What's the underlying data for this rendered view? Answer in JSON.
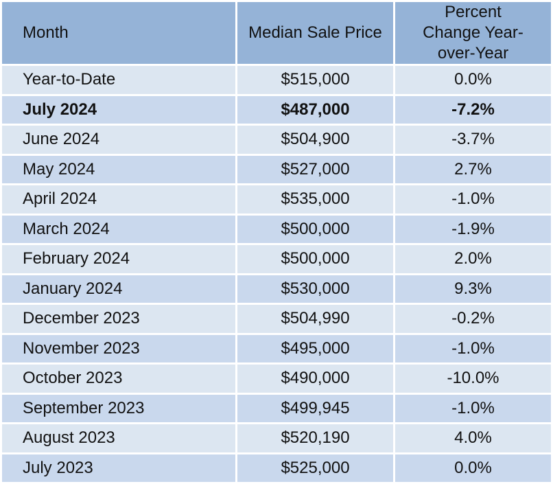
{
  "table": {
    "header": [
      "Month",
      "Median Sale Price",
      "Percent Change Year-over-Year"
    ],
    "rows": [
      [
        "Year-to-Date",
        "$515,000",
        "0.0%"
      ],
      [
        "July 2024",
        "$487,000",
        "-7.2%"
      ],
      [
        "June 2024",
        "$504,900",
        "-3.7%"
      ],
      [
        "May 2024",
        "$527,000",
        "2.7%"
      ],
      [
        "April 2024",
        "$535,000",
        "-1.0%"
      ],
      [
        "March 2024",
        "$500,000",
        "-1.9%"
      ],
      [
        "February 2024",
        "$500,000",
        "2.0%"
      ],
      [
        "January 2024",
        "$530,000",
        "9.3%"
      ],
      [
        "December 2023",
        "$504,990",
        "-0.2%"
      ],
      [
        "November 2023",
        "$495,000",
        "-1.0%"
      ],
      [
        "October 2023",
        "$490,000",
        "-10.0%"
      ],
      [
        "September 2023",
        "$499,945",
        "-1.0%"
      ],
      [
        "August 2023",
        "$520,190",
        "4.0%"
      ],
      [
        "July 2023",
        "$525,000",
        "0.0%"
      ]
    ]
  }
}
